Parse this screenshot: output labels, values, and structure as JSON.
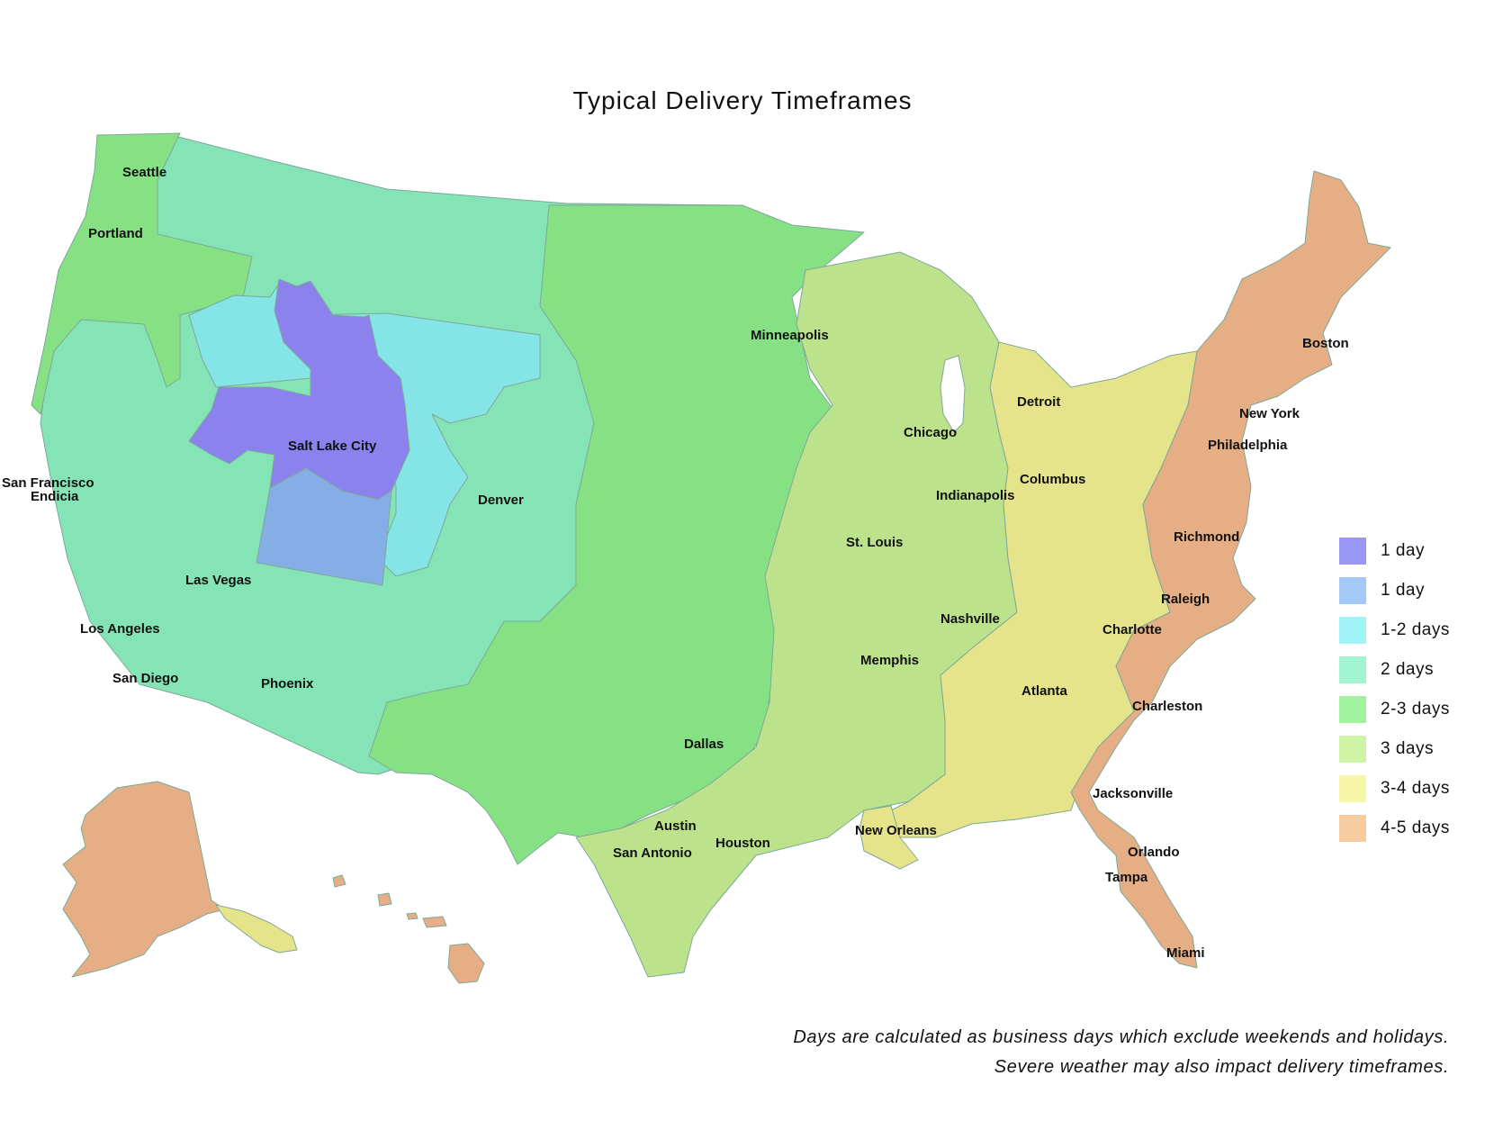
{
  "title": "Typical Delivery Timeframes",
  "colors": {
    "day1_violet": "#8b82ee",
    "day1_blue": "#86aee6",
    "days_1_2": "#84e4e6",
    "days_2": "#84e4b6",
    "days_2_3": "#86e184",
    "days_3": "#bce38c",
    "days_3_4": "#e6e48a",
    "days_4_5": "#e6ae84",
    "border": "#7ea898"
  },
  "legend": [
    {
      "label": "1 day",
      "color": "#9a98f7"
    },
    {
      "label": "1 day",
      "color": "#a3caf7"
    },
    {
      "label": "1-2 days",
      "color": "#a0f4f7"
    },
    {
      "label": "2 days",
      "color": "#a0f4cf"
    },
    {
      "label": "2-3 days",
      "color": "#a0f29f"
    },
    {
      "label": "3 days",
      "color": "#cff4a6"
    },
    {
      "label": "3-4 days",
      "color": "#f7f5a6"
    },
    {
      "label": "4-5 days",
      "color": "#f7cca0"
    }
  ],
  "cities": {
    "seattle": "Seattle",
    "portland": "Portland",
    "san_francisco": "San Francisco",
    "endicia": "Endicia",
    "los_angeles": "Los Angeles",
    "san_diego": "San Diego",
    "las_vegas": "Las Vegas",
    "phoenix": "Phoenix",
    "salt_lake_city": "Salt Lake City",
    "denver": "Denver",
    "minneapolis": "Minneapolis",
    "chicago": "Chicago",
    "detroit": "Detroit",
    "indianapolis": "Indianapolis",
    "columbus": "Columbus",
    "st_louis": "St. Louis",
    "nashville": "Nashville",
    "memphis": "Memphis",
    "dallas": "Dallas",
    "austin": "Austin",
    "san_antonio": "San Antonio",
    "houston": "Houston",
    "new_orleans": "New Orleans",
    "atlanta": "Atlanta",
    "charlotte": "Charlotte",
    "raleigh": "Raleigh",
    "charleston": "Charleston",
    "jacksonville": "Jacksonville",
    "orlando": "Orlando",
    "tampa": "Tampa",
    "miami": "Miami",
    "richmond": "Richmond",
    "philadelphia": "Philadelphia",
    "new_york": "New York",
    "boston": "Boston"
  },
  "footnote": {
    "line1": "Days are calculated as business days which exclude weekends and holidays.",
    "line2": "Severe weather may also impact delivery timeframes."
  }
}
